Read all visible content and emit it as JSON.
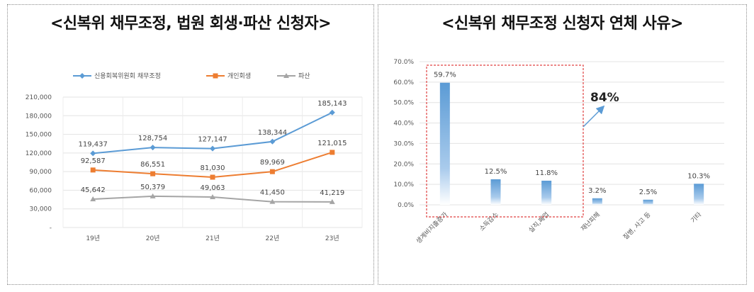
{
  "titles": {
    "left": "<신복위 채무조정, 법원 회생·파산 신청자>",
    "right": "<신복위 채무조정 신청자 연체 사유>"
  },
  "chart_data": [
    {
      "type": "line",
      "title": "<신복위 채무조정, 법원 회생·파산 신청자>",
      "categories": [
        "19년",
        "20년",
        "21년",
        "22년",
        "23년"
      ],
      "y_ticks": [
        "-",
        "30,000",
        "60,000",
        "90,000",
        "120,000",
        "150,000",
        "180,000",
        "210,000"
      ],
      "ylim": [
        0,
        210000
      ],
      "grid": true,
      "legend_position": "top",
      "series": [
        {
          "name": "신용회복위원회 채무조정",
          "color": "#5b9bd5",
          "marker": "diamond",
          "values": [
            119437,
            128754,
            127147,
            138344,
            185143
          ],
          "labels": [
            "119,437",
            "128,754",
            "127,147",
            "138,344",
            "185,143"
          ]
        },
        {
          "name": "개인회생",
          "color": "#ed7d31",
          "marker": "square",
          "values": [
            92587,
            86551,
            81030,
            89969,
            121015
          ],
          "labels": [
            "92,587",
            "86,551",
            "81,030",
            "89,969",
            "121,015"
          ]
        },
        {
          "name": "파산",
          "color": "#a5a5a5",
          "marker": "triangle",
          "values": [
            45642,
            50379,
            49063,
            41450,
            41219
          ],
          "labels": [
            "45,642",
            "50,379",
            "49,063",
            "41,450",
            "41,219"
          ]
        }
      ]
    },
    {
      "type": "bar",
      "title": "<신복위 채무조정 신청자 연체 사유>",
      "categories": [
        "생계비지출증가",
        "소득감소",
        "실직,폐업",
        "재난피해",
        "질병, 사고 등",
        "기타"
      ],
      "values": [
        59.7,
        12.5,
        11.8,
        3.2,
        2.5,
        10.3
      ],
      "labels": [
        "59.7%",
        "12.5%",
        "11.8%",
        "3.2%",
        "2.5%",
        "10.3%"
      ],
      "y_ticks": [
        "0.0%",
        "10.0%",
        "20.0%",
        "30.0%",
        "40.0%",
        "50.0%",
        "60.0%",
        "70.0%"
      ],
      "ylim": [
        0,
        70
      ],
      "grid": true,
      "bar_color": "#5b9bd5",
      "annotation": {
        "text": "84%",
        "highlighted_categories": [
          "생계비지출증가",
          "소득감소",
          "실직,폐업"
        ],
        "box_color": "#e04040"
      }
    }
  ]
}
